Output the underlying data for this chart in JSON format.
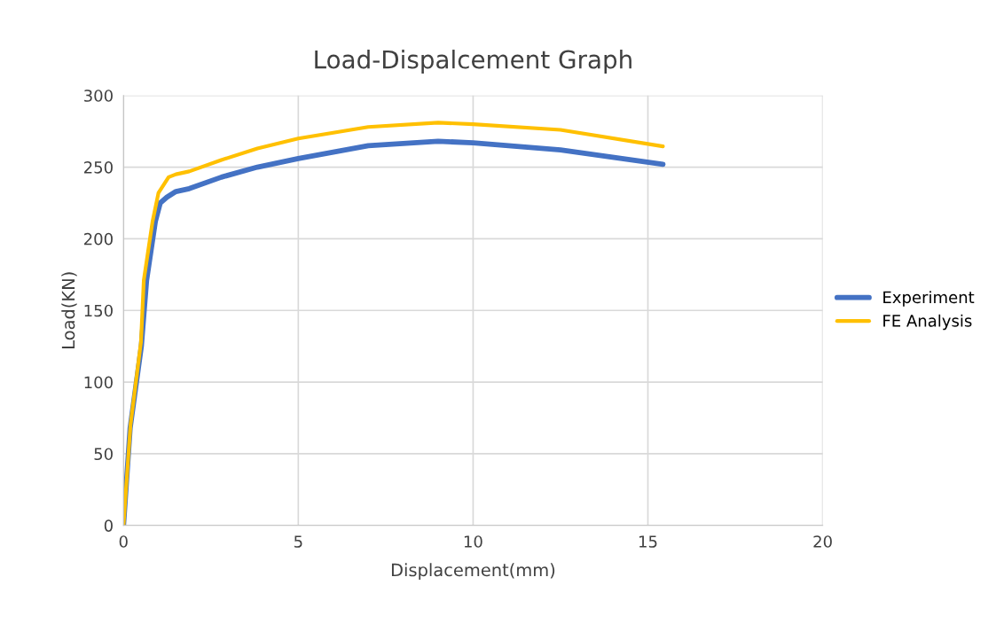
{
  "chart_data": {
    "type": "line",
    "title": "Load-Dispalcement Graph",
    "xlabel": "Displacement(mm)",
    "ylabel": "Load(KN)",
    "xlim": [
      0,
      20
    ],
    "xticks": [
      0,
      5,
      10,
      15,
      20
    ],
    "ylim": [
      0,
      300
    ],
    "yticks": [
      0,
      50,
      100,
      150,
      200,
      250,
      300
    ],
    "grid": true,
    "legend": "right",
    "marker": "none",
    "line_style": "solid",
    "series": [
      {
        "name": "Experiment",
        "color": "#4472c4",
        "x": [
          0,
          0.19,
          0.51,
          0.66,
          0.91,
          1.05,
          1.24,
          1.5,
          1.88,
          2.8,
          3.83,
          5,
          7,
          9,
          10,
          12.5,
          15.43
        ],
        "values": [
          0,
          68,
          125,
          171,
          212,
          225,
          229,
          233,
          235,
          243,
          250,
          256,
          265,
          268,
          267,
          262,
          252
        ]
      },
      {
        "name": "FE Analysis",
        "color": "#ffc000",
        "x": [
          0,
          0.2,
          0.5,
          0.58,
          0.83,
          1.0,
          1.29,
          1.5,
          1.88,
          2.8,
          3.83,
          5,
          7,
          9,
          10,
          12.5,
          15.43
        ],
        "values": [
          0,
          70,
          128,
          171,
          212,
          232,
          243,
          245,
          247,
          255,
          263,
          270,
          278,
          281,
          280,
          276,
          264.5
        ]
      }
    ]
  }
}
